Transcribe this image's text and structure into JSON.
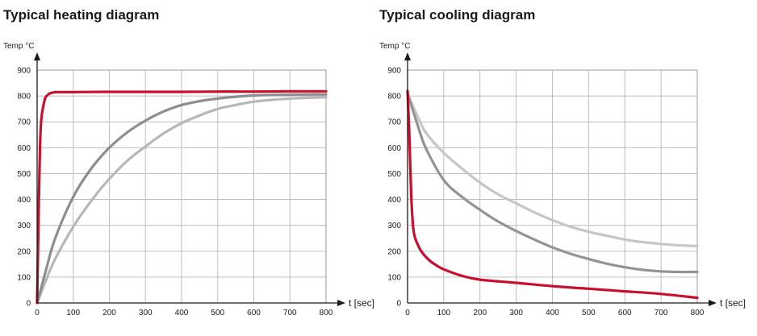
{
  "chart_data": [
    {
      "type": "line",
      "title": "Typical heating diagram",
      "ylabel": "Temp °C",
      "xlabel": "t [sec]",
      "xlim": [
        0,
        800
      ],
      "ylim": [
        0,
        900
      ],
      "xticks": [
        0,
        100,
        200,
        300,
        400,
        500,
        600,
        700,
        800
      ],
      "yticks": [
        0,
        100,
        200,
        300,
        400,
        500,
        600,
        700,
        800,
        900
      ],
      "grid": true,
      "series": [
        {
          "color": "#b7b7b7",
          "x": [
            0,
            25,
            50,
            100,
            150,
            200,
            250,
            300,
            350,
            400,
            450,
            500,
            550,
            600,
            650,
            700,
            750,
            800
          ],
          "y": [
            0,
            90,
            170,
            295,
            395,
            480,
            550,
            605,
            655,
            695,
            725,
            750,
            765,
            778,
            785,
            790,
            793,
            795
          ]
        },
        {
          "color": "#8e8e8e",
          "x": [
            0,
            25,
            50,
            100,
            150,
            200,
            250,
            300,
            350,
            400,
            450,
            500,
            550,
            600,
            650,
            700,
            750,
            800
          ],
          "y": [
            0,
            130,
            250,
            410,
            520,
            600,
            660,
            705,
            740,
            765,
            780,
            790,
            797,
            802,
            804,
            805,
            806,
            806
          ]
        },
        {
          "color": "#c8102e",
          "x": [
            0,
            5,
            10,
            20,
            30,
            40,
            50,
            60,
            100,
            200,
            300,
            400,
            500,
            600,
            700,
            800
          ],
          "y": [
            0,
            400,
            680,
            780,
            805,
            812,
            815,
            815,
            815,
            816,
            816,
            816,
            817,
            817,
            818,
            818
          ]
        }
      ]
    },
    {
      "type": "line",
      "title": "Typical cooling diagram",
      "ylabel": "Temp °C",
      "xlabel": "t [sec]",
      "xlim": [
        0,
        800
      ],
      "ylim": [
        0,
        900
      ],
      "xticks": [
        0,
        100,
        200,
        300,
        400,
        500,
        600,
        700,
        800
      ],
      "yticks": [
        0,
        100,
        200,
        300,
        400,
        500,
        600,
        700,
        800,
        900
      ],
      "grid": true,
      "series": [
        {
          "color": "#c6c6c6",
          "x": [
            0,
            25,
            50,
            100,
            150,
            200,
            250,
            300,
            350,
            400,
            450,
            500,
            550,
            600,
            650,
            700,
            750,
            800
          ],
          "y": [
            810,
            730,
            660,
            580,
            520,
            465,
            420,
            385,
            350,
            320,
            295,
            275,
            260,
            245,
            235,
            228,
            223,
            220
          ]
        },
        {
          "color": "#939393",
          "x": [
            0,
            25,
            50,
            100,
            150,
            200,
            250,
            300,
            350,
            400,
            450,
            500,
            550,
            600,
            650,
            700,
            750,
            800
          ],
          "y": [
            810,
            700,
            600,
            475,
            410,
            360,
            315,
            278,
            245,
            215,
            190,
            170,
            152,
            138,
            128,
            122,
            120,
            120
          ]
        },
        {
          "color": "#c8102e",
          "x": [
            0,
            5,
            10,
            15,
            20,
            30,
            40,
            60,
            80,
            100,
            150,
            200,
            300,
            400,
            500,
            600,
            700,
            800
          ],
          "y": [
            820,
            650,
            420,
            300,
            255,
            220,
            195,
            165,
            145,
            130,
            105,
            90,
            78,
            65,
            55,
            45,
            35,
            20
          ]
        }
      ]
    }
  ]
}
